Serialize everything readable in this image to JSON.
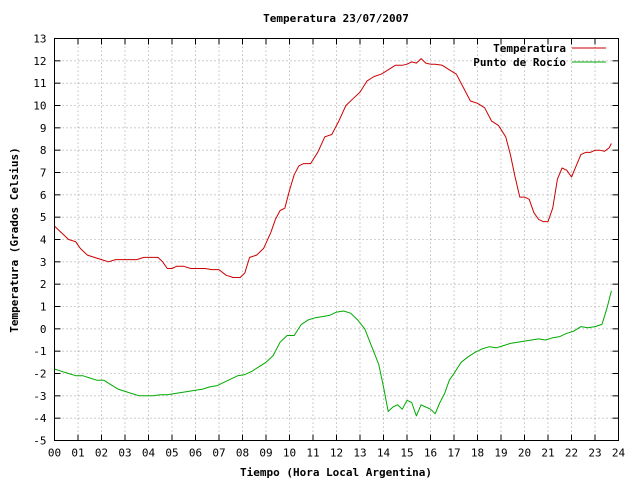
{
  "chart_data": {
    "type": "line",
    "title": "Temperatura 23/07/2007",
    "xlabel": "Tiempo (Hora Local Argentina)",
    "ylabel": "Temperatura (Grados Celsius)",
    "xlim": [
      0,
      24
    ],
    "ylim": [
      -5,
      13
    ],
    "grid": true,
    "legend_position": "top-right",
    "x_ticks": [
      "00",
      "01",
      "02",
      "03",
      "04",
      "05",
      "06",
      "07",
      "08",
      "09",
      "10",
      "11",
      "12",
      "13",
      "14",
      "15",
      "16",
      "17",
      "18",
      "19",
      "20",
      "21",
      "22",
      "23",
      "24"
    ],
    "y_ticks": [
      "-5",
      "-4",
      "-3",
      "-2",
      "-1",
      "0",
      "1",
      "2",
      "3",
      "4",
      "5",
      "6",
      "7",
      "8",
      "9",
      "10",
      "11",
      "12",
      "13"
    ],
    "series": [
      {
        "name": "Temperatura",
        "color": "#cc0000",
        "x": [
          0.0,
          0.2,
          0.4,
          0.6,
          0.9,
          1.1,
          1.4,
          1.7,
          2.0,
          2.3,
          2.6,
          2.9,
          3.2,
          3.5,
          3.8,
          4.1,
          4.4,
          4.6,
          4.8,
          5.0,
          5.2,
          5.5,
          5.8,
          6.1,
          6.4,
          6.7,
          7.0,
          7.3,
          7.6,
          7.9,
          8.1,
          8.3,
          8.6,
          8.9,
          9.2,
          9.4,
          9.6,
          9.8,
          10.0,
          10.2,
          10.4,
          10.6,
          10.9,
          11.2,
          11.5,
          11.8,
          12.1,
          12.4,
          12.7,
          13.0,
          13.3,
          13.6,
          13.9,
          14.2,
          14.5,
          14.8,
          15.0,
          15.2,
          15.4,
          15.6,
          15.8,
          16.0,
          16.2,
          16.5,
          16.8,
          17.1,
          17.4,
          17.7,
          18.0,
          18.3,
          18.6,
          18.9,
          19.2,
          19.4,
          19.6,
          19.8,
          20.0,
          20.2,
          20.4,
          20.6,
          20.8,
          21.0,
          21.2,
          21.4,
          21.6,
          21.8,
          22.0,
          22.2,
          22.4,
          22.6,
          22.8,
          23.0,
          23.2,
          23.4,
          23.6,
          23.7
        ],
        "values": [
          4.6,
          4.4,
          4.2,
          4.0,
          3.9,
          3.6,
          3.3,
          3.2,
          3.1,
          3.0,
          3.1,
          3.1,
          3.1,
          3.1,
          3.2,
          3.2,
          3.2,
          3.0,
          2.7,
          2.7,
          2.8,
          2.8,
          2.7,
          2.7,
          2.7,
          2.65,
          2.65,
          2.4,
          2.3,
          2.3,
          2.5,
          3.2,
          3.3,
          3.6,
          4.3,
          4.9,
          5.3,
          5.4,
          6.2,
          6.9,
          7.3,
          7.4,
          7.4,
          7.9,
          8.6,
          8.7,
          9.3,
          10.0,
          10.3,
          10.6,
          11.1,
          11.3,
          11.4,
          11.6,
          11.8,
          11.8,
          11.85,
          11.95,
          11.9,
          12.1,
          11.9,
          11.85,
          11.85,
          11.8,
          11.6,
          11.4,
          10.8,
          10.2,
          10.1,
          9.9,
          9.3,
          9.1,
          8.6,
          7.8,
          6.8,
          5.9,
          5.9,
          5.8,
          5.2,
          4.9,
          4.8,
          4.8,
          5.4,
          6.7,
          7.2,
          7.1,
          6.8,
          7.3,
          7.8,
          7.9,
          7.9,
          8.0,
          8.0,
          7.95,
          8.1,
          8.3
        ]
      },
      {
        "name": "Punto de Rocío",
        "color": "#00aa00",
        "x": [
          0.0,
          0.3,
          0.6,
          0.9,
          1.2,
          1.5,
          1.8,
          2.1,
          2.4,
          2.7,
          3.0,
          3.3,
          3.6,
          3.9,
          4.2,
          4.5,
          4.8,
          5.1,
          5.4,
          5.7,
          6.0,
          6.3,
          6.6,
          6.9,
          7.2,
          7.5,
          7.8,
          8.1,
          8.4,
          8.7,
          9.0,
          9.3,
          9.6,
          9.9,
          10.2,
          10.5,
          10.8,
          11.1,
          11.4,
          11.7,
          12.0,
          12.3,
          12.6,
          12.9,
          13.2,
          13.5,
          13.8,
          14.0,
          14.2,
          14.4,
          14.6,
          14.8,
          15.0,
          15.2,
          15.4,
          15.6,
          15.8,
          16.0,
          16.2,
          16.4,
          16.6,
          16.8,
          17.0,
          17.3,
          17.6,
          17.9,
          18.2,
          18.5,
          18.8,
          19.1,
          19.4,
          19.7,
          20.0,
          20.3,
          20.6,
          20.9,
          21.2,
          21.5,
          21.8,
          22.1,
          22.4,
          22.7,
          23.0,
          23.3,
          23.5,
          23.7
        ],
        "values": [
          -1.8,
          -1.9,
          -2.0,
          -2.1,
          -2.1,
          -2.2,
          -2.3,
          -2.3,
          -2.5,
          -2.7,
          -2.8,
          -2.9,
          -3.0,
          -3.0,
          -3.0,
          -2.95,
          -2.95,
          -2.9,
          -2.85,
          -2.8,
          -2.75,
          -2.7,
          -2.6,
          -2.55,
          -2.4,
          -2.25,
          -2.1,
          -2.05,
          -1.9,
          -1.7,
          -1.5,
          -1.2,
          -0.6,
          -0.3,
          -0.3,
          0.2,
          0.4,
          0.5,
          0.55,
          0.6,
          0.75,
          0.8,
          0.7,
          0.4,
          0.0,
          -0.8,
          -1.6,
          -2.6,
          -3.7,
          -3.5,
          -3.4,
          -3.6,
          -3.2,
          -3.3,
          -3.9,
          -3.4,
          -3.5,
          -3.6,
          -3.8,
          -3.3,
          -2.9,
          -2.3,
          -2.0,
          -1.5,
          -1.25,
          -1.05,
          -0.9,
          -0.8,
          -0.85,
          -0.75,
          -0.65,
          -0.6,
          -0.55,
          -0.5,
          -0.45,
          -0.5,
          -0.4,
          -0.35,
          -0.2,
          -0.1,
          0.1,
          0.05,
          0.1,
          0.2,
          0.9,
          1.7
        ]
      }
    ]
  }
}
